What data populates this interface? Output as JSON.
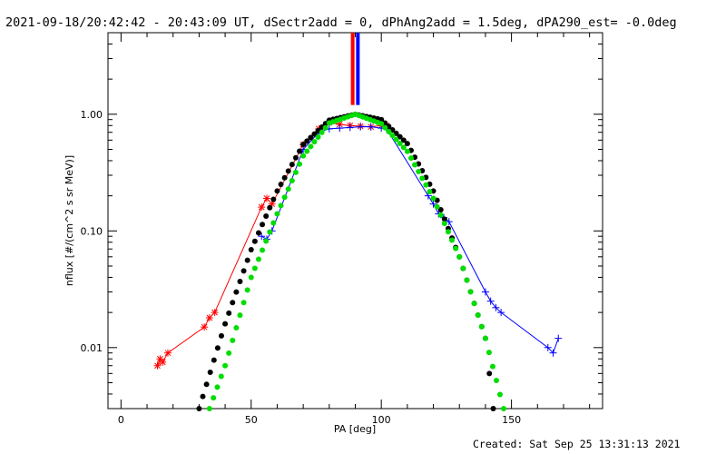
{
  "title": "2021-09-18/20:42:42 - 20:43:09 UT, dSectr2add = 0, dPhAng2add = 1.5deg, dPA290_est= -0.0deg",
  "footer": "Created: Sat Sep 25 13:31:13 2021",
  "colors": {
    "red": "#ff0000",
    "blue": "#0000ff",
    "black": "#000000",
    "green": "#00dd00"
  },
  "chart_data": {
    "type": "scatter",
    "xlabel": "PA [deg]",
    "ylabel": "nflux [#/(cm^2 s sr MeV)]",
    "xlim": [
      -5,
      185
    ],
    "ylim": [
      0.003,
      5
    ],
    "yscale": "log",
    "x_ticks": [
      0,
      50,
      100,
      150
    ],
    "y_ticks": [
      0.01,
      0.1,
      1.0
    ],
    "y_tick_labels": [
      "0.01",
      "0.10",
      "1.00"
    ],
    "series": [
      {
        "color": "red",
        "style": "asterisk-lines",
        "x": [
          14,
          15,
          16,
          18,
          32,
          34,
          36,
          54,
          56,
          58,
          70,
          76,
          80,
          84,
          88,
          92,
          96,
          100,
          102
        ],
        "y": [
          0.007,
          0.008,
          0.0075,
          0.009,
          0.015,
          0.018,
          0.02,
          0.16,
          0.19,
          0.17,
          0.55,
          0.75,
          0.85,
          0.82,
          0.8,
          0.79,
          0.78,
          0.8,
          0.8
        ]
      },
      {
        "color": "blue",
        "style": "plus-lines",
        "x": [
          54,
          56,
          58,
          70,
          76,
          80,
          84,
          88,
          92,
          96,
          100,
          102,
          118,
          120,
          122,
          124,
          126,
          140,
          142,
          144,
          146,
          164,
          166,
          168
        ],
        "y": [
          0.09,
          0.085,
          0.1,
          0.5,
          0.7,
          0.75,
          0.76,
          0.77,
          0.78,
          0.78,
          0.76,
          0.75,
          0.2,
          0.17,
          0.14,
          0.13,
          0.12,
          0.03,
          0.025,
          0.022,
          0.02,
          0.01,
          0.009,
          0.012
        ]
      },
      {
        "color": "black",
        "style": "dotted-curve",
        "model": "Gaussian centered at 90 deg, width ~21 deg",
        "x": [
          30,
          40,
          50,
          60,
          70,
          80,
          90,
          100,
          110,
          120,
          130,
          140,
          143
        ],
        "y": [
          0.003,
          0.016,
          0.069,
          0.22,
          0.55,
          0.89,
          1.0,
          0.9,
          0.56,
          0.22,
          0.06,
          0.012,
          0.003
        ]
      },
      {
        "color": "green",
        "style": "dotted-curve",
        "model": "Gaussian centered at 90 deg, width ~24 deg",
        "x": [
          34,
          40,
          50,
          60,
          70,
          80,
          90,
          100,
          110,
          120,
          130,
          140,
          147
        ],
        "y": [
          0.003,
          0.007,
          0.04,
          0.14,
          0.44,
          0.84,
          1.0,
          0.83,
          0.48,
          0.19,
          0.06,
          0.012,
          0.003
        ]
      }
    ],
    "vertical_lines": [
      {
        "color": "red",
        "x": 89,
        "y_from": 1.2,
        "y_to": 5
      },
      {
        "color": "blue",
        "x": 91,
        "y_from": 1.2,
        "y_to": 5
      }
    ]
  }
}
